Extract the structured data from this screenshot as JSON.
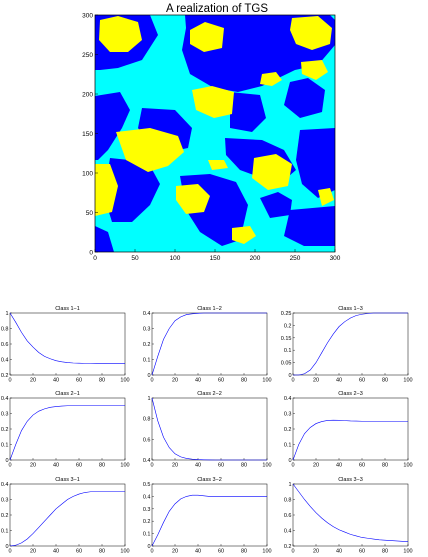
{
  "main_plot": {
    "title": "A realization of TGS",
    "x_ticks": [
      "0",
      "50",
      "100",
      "150",
      "200",
      "250",
      "300"
    ],
    "y_ticks": [
      "0",
      "50",
      "100",
      "150",
      "200",
      "250",
      "300"
    ],
    "xlim": [
      0,
      300
    ],
    "ylim": [
      0,
      300
    ],
    "colors": {
      "class1": "#ffff00",
      "class2": "#00ffff",
      "class3": "#0000ff"
    }
  },
  "chart_data": [
    {
      "type": "heatmap",
      "title": "A realization of TGS",
      "xlim": [
        0,
        300
      ],
      "ylim": [
        0,
        300
      ],
      "categories": [
        "yellow",
        "cyan",
        "blue"
      ],
      "note_values": "three-class random field, region shapes approximated"
    },
    {
      "type": "line",
      "title": "Class 1−1",
      "xlim": [
        0,
        100
      ],
      "ylim": [
        0.2,
        1
      ],
      "y_ticks": [
        "0.2",
        "0.4",
        "0.6",
        "0.8",
        "1"
      ],
      "x_ticks": [
        "0",
        "20",
        "40",
        "60",
        "80",
        "100"
      ],
      "x": [
        0,
        5,
        10,
        15,
        20,
        25,
        30,
        35,
        40,
        45,
        50,
        55,
        60,
        65,
        70,
        75,
        80,
        85,
        90,
        95,
        100
      ],
      "values": [
        1.0,
        0.88,
        0.75,
        0.64,
        0.56,
        0.49,
        0.44,
        0.41,
        0.385,
        0.37,
        0.36,
        0.355,
        0.352,
        0.35,
        0.35,
        0.349,
        0.349,
        0.348,
        0.348,
        0.348,
        0.348
      ]
    },
    {
      "type": "line",
      "title": "Class 1−2",
      "xlim": [
        0,
        100
      ],
      "ylim": [
        0,
        0.4
      ],
      "y_ticks": [
        "0",
        "0.1",
        "0.2",
        "0.3",
        "0.4"
      ],
      "x_ticks": [
        "0",
        "20",
        "40",
        "60",
        "80",
        "100"
      ],
      "x": [
        0,
        5,
        10,
        15,
        20,
        25,
        30,
        35,
        40,
        45,
        50,
        55,
        60,
        65,
        70,
        75,
        80,
        85,
        90,
        95,
        100
      ],
      "values": [
        0.0,
        0.12,
        0.23,
        0.3,
        0.35,
        0.375,
        0.39,
        0.395,
        0.398,
        0.4,
        0.4,
        0.4,
        0.4,
        0.4,
        0.4,
        0.4,
        0.4,
        0.4,
        0.4,
        0.4,
        0.4
      ]
    },
    {
      "type": "line",
      "title": "Class 1−3",
      "xlim": [
        0,
        100
      ],
      "ylim": [
        0,
        0.25
      ],
      "y_ticks": [
        "0",
        "0.05",
        "0.1",
        "0.15",
        "0.2",
        "0.25"
      ],
      "x_ticks": [
        "0",
        "20",
        "40",
        "60",
        "80",
        "100"
      ],
      "x": [
        0,
        5,
        10,
        15,
        20,
        25,
        30,
        35,
        40,
        45,
        50,
        55,
        60,
        65,
        70,
        75,
        80,
        85,
        90,
        95,
        100
      ],
      "values": [
        0.0,
        0.0,
        0.005,
        0.02,
        0.05,
        0.09,
        0.13,
        0.165,
        0.195,
        0.215,
        0.23,
        0.24,
        0.245,
        0.248,
        0.25,
        0.25,
        0.25,
        0.25,
        0.25,
        0.25,
        0.25
      ]
    },
    {
      "type": "line",
      "title": "Class 2−1",
      "xlim": [
        0,
        100
      ],
      "ylim": [
        0,
        0.4
      ],
      "y_ticks": [
        "0",
        "0.1",
        "0.2",
        "0.3",
        "0.4"
      ],
      "x_ticks": [
        "0",
        "20",
        "40",
        "60",
        "80",
        "100"
      ],
      "x": [
        0,
        5,
        10,
        15,
        20,
        25,
        30,
        35,
        40,
        45,
        50,
        55,
        60,
        65,
        70,
        75,
        80,
        85,
        90,
        95,
        100
      ],
      "values": [
        0.0,
        0.1,
        0.19,
        0.25,
        0.29,
        0.315,
        0.33,
        0.34,
        0.345,
        0.348,
        0.35,
        0.35,
        0.35,
        0.35,
        0.35,
        0.35,
        0.35,
        0.35,
        0.35,
        0.35,
        0.35
      ]
    },
    {
      "type": "line",
      "title": "Class 2−2",
      "xlim": [
        0,
        100
      ],
      "ylim": [
        0.4,
        1
      ],
      "y_ticks": [
        "0.4",
        "0.6",
        "0.8",
        "1"
      ],
      "x_ticks": [
        "0",
        "20",
        "40",
        "60",
        "80",
        "100"
      ],
      "x": [
        0,
        5,
        10,
        15,
        20,
        25,
        30,
        35,
        40,
        45,
        50,
        55,
        60,
        65,
        70,
        75,
        80,
        85,
        90,
        95,
        100
      ],
      "values": [
        1.0,
        0.78,
        0.62,
        0.52,
        0.46,
        0.43,
        0.415,
        0.408,
        0.404,
        0.402,
        0.401,
        0.4,
        0.4,
        0.4,
        0.4,
        0.4,
        0.4,
        0.4,
        0.4,
        0.4,
        0.4
      ]
    },
    {
      "type": "line",
      "title": "Class 2−3",
      "xlim": [
        0,
        100
      ],
      "ylim": [
        0,
        0.4
      ],
      "y_ticks": [
        "0",
        "0.1",
        "0.2",
        "0.3",
        "0.4"
      ],
      "x_ticks": [
        "0",
        "20",
        "40",
        "60",
        "80",
        "100"
      ],
      "x": [
        0,
        5,
        10,
        15,
        20,
        25,
        30,
        35,
        40,
        45,
        50,
        55,
        60,
        65,
        70,
        75,
        80,
        85,
        90,
        95,
        100
      ],
      "values": [
        0.0,
        0.1,
        0.17,
        0.21,
        0.235,
        0.248,
        0.255,
        0.257,
        0.256,
        0.254,
        0.252,
        0.251,
        0.25,
        0.25,
        0.25,
        0.25,
        0.25,
        0.25,
        0.25,
        0.25,
        0.25
      ]
    },
    {
      "type": "line",
      "title": "Class 3−1",
      "xlim": [
        0,
        100
      ],
      "ylim": [
        0,
        0.4
      ],
      "y_ticks": [
        "0",
        "0.1",
        "0.2",
        "0.3",
        "0.4"
      ],
      "x_ticks": [
        "0",
        "20",
        "40",
        "60",
        "80",
        "100"
      ],
      "x": [
        0,
        5,
        10,
        15,
        20,
        25,
        30,
        35,
        40,
        45,
        50,
        55,
        60,
        65,
        70,
        75,
        80,
        85,
        90,
        95,
        100
      ],
      "values": [
        0.0,
        0.005,
        0.02,
        0.045,
        0.08,
        0.12,
        0.16,
        0.2,
        0.24,
        0.27,
        0.3,
        0.32,
        0.335,
        0.345,
        0.35,
        0.35,
        0.35,
        0.35,
        0.35,
        0.35,
        0.35
      ]
    },
    {
      "type": "line",
      "title": "Class 3−2",
      "xlim": [
        0,
        100
      ],
      "ylim": [
        0,
        0.5
      ],
      "y_ticks": [
        "0",
        "0.1",
        "0.2",
        "0.3",
        "0.4",
        "0.5"
      ],
      "x_ticks": [
        "0",
        "20",
        "40",
        "60",
        "80",
        "100"
      ],
      "x": [
        0,
        5,
        10,
        15,
        20,
        25,
        30,
        35,
        40,
        45,
        50,
        55,
        60,
        65,
        70,
        75,
        80,
        85,
        90,
        95,
        100
      ],
      "values": [
        0.0,
        0.09,
        0.19,
        0.28,
        0.34,
        0.38,
        0.4,
        0.41,
        0.41,
        0.405,
        0.4,
        0.4,
        0.4,
        0.4,
        0.4,
        0.4,
        0.4,
        0.4,
        0.4,
        0.4,
        0.4
      ]
    },
    {
      "type": "line",
      "title": "Class 3−3",
      "xlim": [
        0,
        100
      ],
      "ylim": [
        0.2,
        1
      ],
      "y_ticks": [
        "0.2",
        "0.4",
        "0.6",
        "0.8",
        "1"
      ],
      "x_ticks": [
        "0",
        "20",
        "40",
        "60",
        "80",
        "100"
      ],
      "x": [
        0,
        5,
        10,
        15,
        20,
        25,
        30,
        35,
        40,
        45,
        50,
        55,
        60,
        65,
        70,
        75,
        80,
        85,
        90,
        95,
        100
      ],
      "values": [
        1.0,
        0.9,
        0.8,
        0.71,
        0.63,
        0.56,
        0.5,
        0.45,
        0.41,
        0.38,
        0.35,
        0.33,
        0.31,
        0.3,
        0.29,
        0.28,
        0.275,
        0.27,
        0.265,
        0.26,
        0.26
      ]
    }
  ]
}
